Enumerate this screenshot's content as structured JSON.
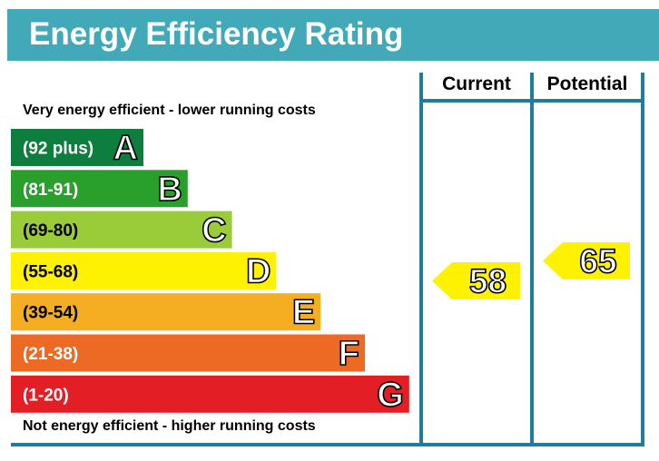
{
  "header": {
    "title": "Energy Efficiency Rating"
  },
  "labels": {
    "top_note": "Very energy efficient - lower running costs",
    "bottom_note": "Not energy efficient - higher running costs"
  },
  "columns": {
    "current": "Current",
    "potential": "Potential"
  },
  "chart_data": {
    "type": "bar",
    "title": "Energy Efficiency Rating",
    "categories": [
      "A",
      "B",
      "C",
      "D",
      "E",
      "F",
      "G"
    ],
    "ranges": [
      "(92 plus)",
      "(81-91)",
      "(69-80)",
      "(55-68)",
      "(39-54)",
      "(21-38)",
      "(1-20)"
    ],
    "colors": [
      "#008054",
      "#19b459",
      "#8dce46",
      "#ffd500",
      "#fcaa65",
      "#ef8023",
      "#e9153b"
    ],
    "bar_colors": [
      "#0d7e3e",
      "#2aa02c",
      "#9acc39",
      "#fff200",
      "#f5ad22",
      "#ec6a23",
      "#e31e25"
    ],
    "range_text_colors": [
      "#ffffff",
      "#ffffff",
      "#000000",
      "#000000",
      "#000000",
      "#ffffff",
      "#ffffff"
    ],
    "series": [
      {
        "name": "Current",
        "value": 58,
        "band": "D"
      },
      {
        "name": "Potential",
        "value": 65,
        "band": "D"
      }
    ],
    "ylim": [
      1,
      100
    ],
    "grid": false
  }
}
